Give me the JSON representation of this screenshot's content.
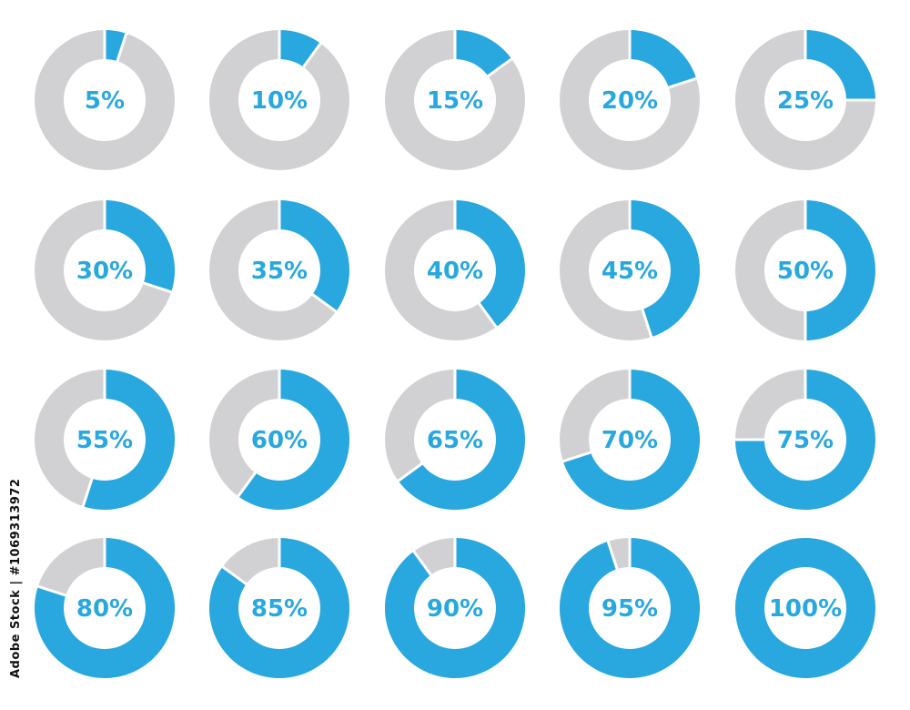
{
  "colors": {
    "fill": "#29a8e0",
    "track": "#d1d1d3",
    "separator": "#ffffff",
    "label": "#29a8e0"
  },
  "chart_data": {
    "type": "donut-grid",
    "rows": 4,
    "cols": 5,
    "unit": "%",
    "values": [
      5,
      10,
      15,
      20,
      25,
      30,
      35,
      40,
      45,
      50,
      55,
      60,
      65,
      70,
      75,
      80,
      85,
      90,
      95,
      100
    ],
    "labels": [
      "5%",
      "10%",
      "15%",
      "20%",
      "25%",
      "30%",
      "35%",
      "40%",
      "45%",
      "50%",
      "55%",
      "60%",
      "65%",
      "70%",
      "75%",
      "80%",
      "85%",
      "90%",
      "95%",
      "100%"
    ]
  },
  "watermark": {
    "side_text": "Adobe Stock | #1069313972"
  }
}
